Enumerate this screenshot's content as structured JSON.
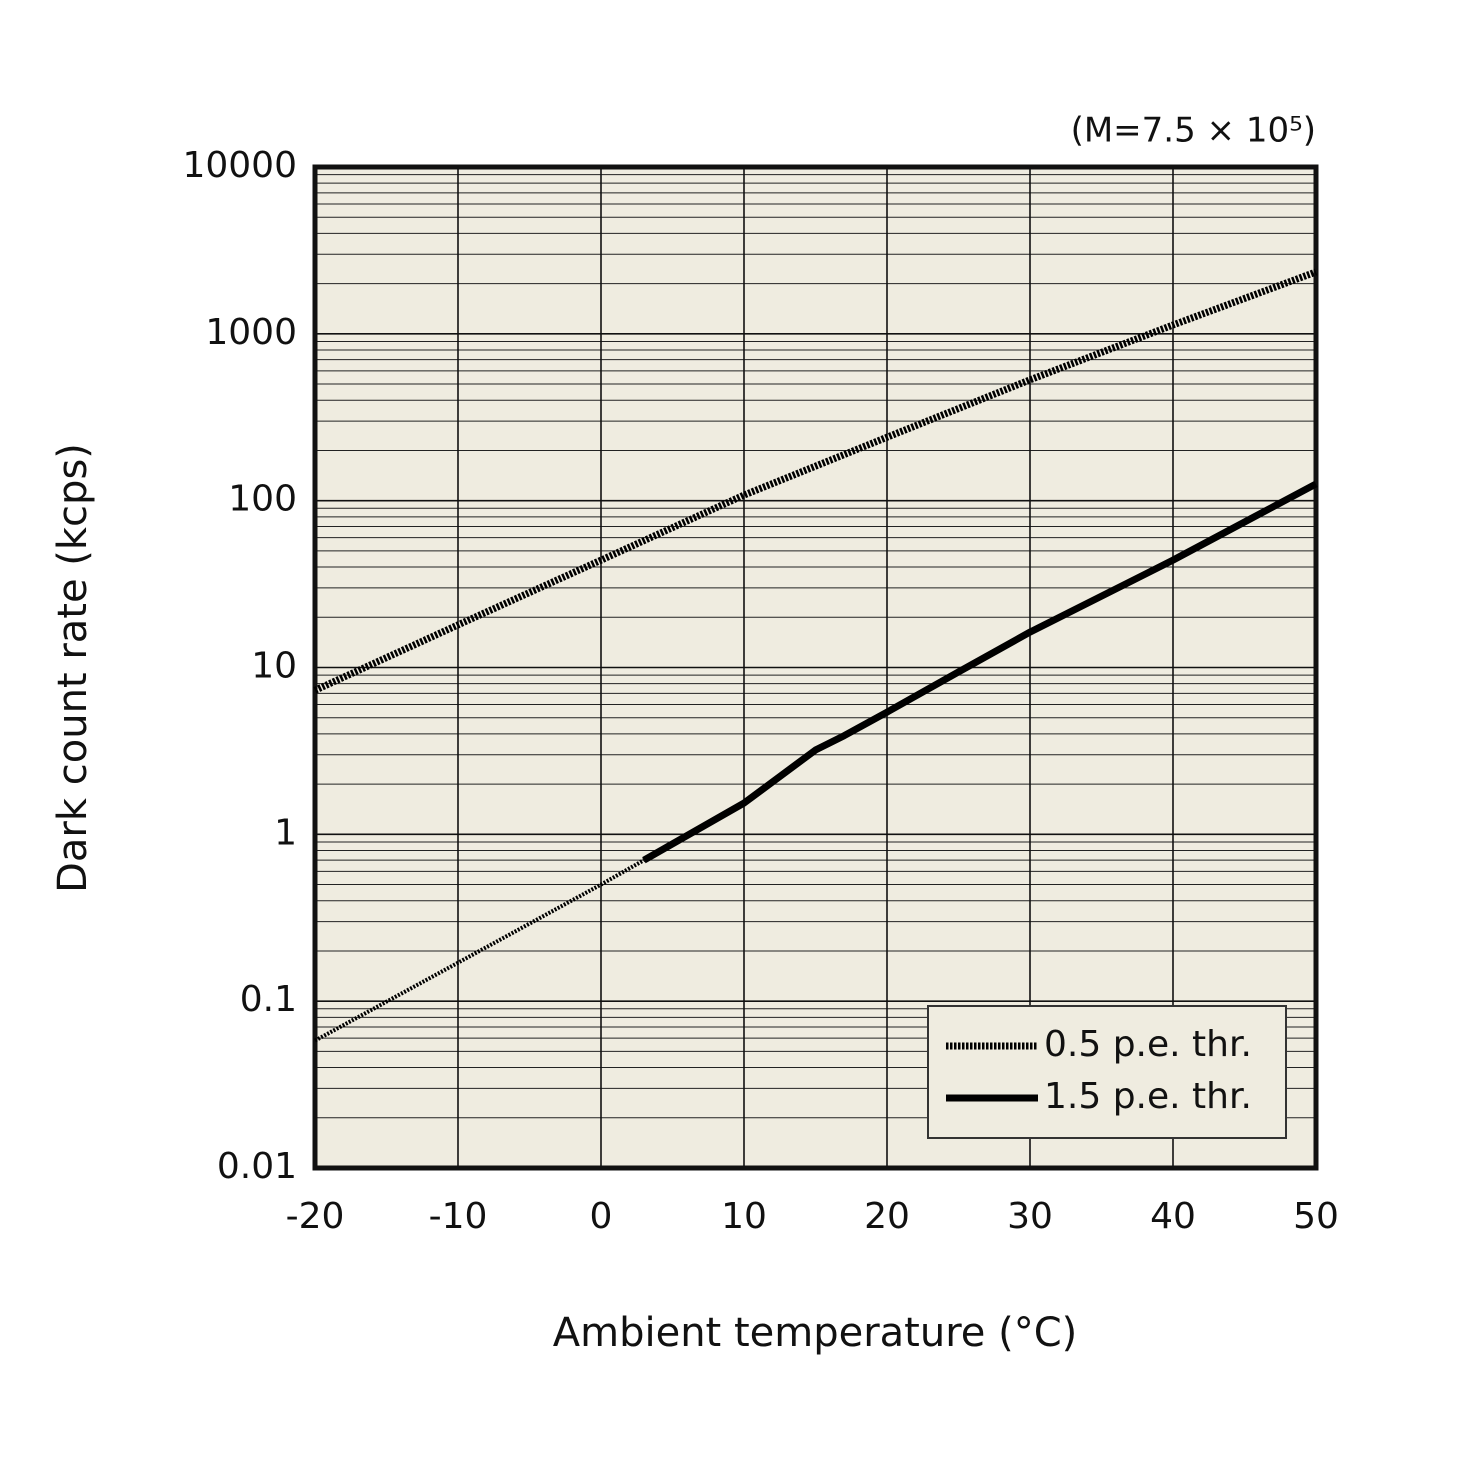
{
  "chart_data": {
    "type": "line",
    "annotation": "(M=7.5 × 10⁵)",
    "x_label": "Ambient temperature (°C)",
    "y_label": "Dark count rate (kcps)",
    "log_y": true,
    "grid": true,
    "legend": "lower right",
    "background": "#efece0",
    "xlim": [
      -20,
      50
    ],
    "xticks": [
      -20,
      -10,
      0,
      10,
      20,
      30,
      40,
      50
    ],
    "ylim": [
      0.01,
      10000
    ],
    "yticks": [
      10000,
      1000,
      100,
      10,
      1,
      0.1,
      0.01
    ],
    "series": [
      {
        "name": "0.5 p.e. thr.",
        "color": "#000000",
        "style": "dotted",
        "x": [
          -20,
          -10,
          0,
          10,
          20,
          30,
          40,
          50
        ],
        "values": [
          7.3,
          18,
          44,
          108,
          240,
          530,
          1130,
          2350
        ]
      },
      {
        "name": "1.5 p.e. thr.",
        "color": "#000000",
        "style": "solid",
        "x": [
          3,
          10,
          15,
          17,
          20,
          25,
          30,
          40,
          50
        ],
        "values": [
          0.7,
          1.54,
          3.2,
          3.9,
          5.4,
          9.4,
          16.3,
          44,
          126
        ]
      },
      {
        "color": "#000000",
        "style": "dotted-thin",
        "x": [
          -20,
          -10,
          0,
          3
        ],
        "values": [
          0.058,
          0.17,
          0.5,
          0.7
        ]
      }
    ]
  }
}
